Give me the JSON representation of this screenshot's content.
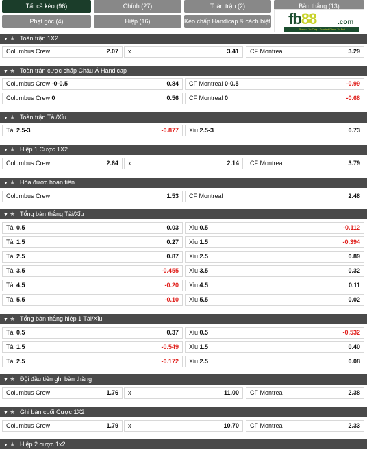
{
  "tabs": {
    "all": "Tất cả kèo (96)",
    "main": "Chính (27)",
    "full_match": "Toàn trận (2)",
    "goals": "Bàn thắng (13)",
    "corners": "Phạt góc (4)",
    "half": "Hiệp (16)",
    "handicap": "Kèo chấp Handicap & cách biệt (2)"
  },
  "logo": {
    "brand_a": "fb",
    "brand_b": "88",
    "domain": ".com",
    "tagline": "Games To Play · Trusted Place To Bet"
  },
  "colors": {
    "header_bg": "#4a4a4a",
    "active_tab": "#1b3d2a",
    "tab_bg": "#888888",
    "negative": "#e0201c"
  },
  "sections": [
    {
      "title": "Toàn trận 1X2",
      "rows": [
        [
          {
            "label": "Columbus Crew",
            "line": "",
            "value": "2.07"
          },
          {
            "label": "x",
            "line": "",
            "value": "3.41"
          },
          {
            "label": "CF Montreal",
            "line": "",
            "value": "3.29"
          }
        ]
      ]
    },
    {
      "title": "Toàn trận cược chấp Châu Á Handicap",
      "rows": [
        [
          {
            "label": "Columbus Crew",
            "line": "-0-0.5",
            "value": "0.84"
          },
          {
            "label": "CF Montreal",
            "line": "0-0.5",
            "value": "-0.99"
          }
        ],
        [
          {
            "label": "Columbus Crew",
            "line": "0",
            "value": "0.56"
          },
          {
            "label": "CF Montreal",
            "line": "0",
            "value": "-0.68"
          }
        ]
      ]
    },
    {
      "title": "Toàn trận Tài/Xỉu",
      "rows": [
        [
          {
            "label": "Tài",
            "line": "2.5-3",
            "value": "-0.877"
          },
          {
            "label": "Xỉu",
            "line": "2.5-3",
            "value": "0.73"
          }
        ]
      ]
    },
    {
      "title": "Hiệp 1 Cược 1X2",
      "rows": [
        [
          {
            "label": "Columbus Crew",
            "line": "",
            "value": "2.64"
          },
          {
            "label": "x",
            "line": "",
            "value": "2.14"
          },
          {
            "label": "CF Montreal",
            "line": "",
            "value": "3.79"
          }
        ]
      ]
    },
    {
      "title": "Hòa được hoàn tiền",
      "rows": [
        [
          {
            "label": "Columbus Crew",
            "line": "",
            "value": "1.53"
          },
          {
            "label": "CF Montreal",
            "line": "",
            "value": "2.48"
          }
        ]
      ]
    },
    {
      "title": "Tổng bàn thắng Tài/Xỉu",
      "rows": [
        [
          {
            "label": "Tài",
            "line": "0.5",
            "value": "0.03"
          },
          {
            "label": "Xỉu",
            "line": "0.5",
            "value": "-0.112"
          }
        ],
        [
          {
            "label": "Tài",
            "line": "1.5",
            "value": "0.27"
          },
          {
            "label": "Xỉu",
            "line": "1.5",
            "value": "-0.394"
          }
        ],
        [
          {
            "label": "Tài",
            "line": "2.5",
            "value": "0.87"
          },
          {
            "label": "Xỉu",
            "line": "2.5",
            "value": "0.89"
          }
        ],
        [
          {
            "label": "Tài",
            "line": "3.5",
            "value": "-0.455"
          },
          {
            "label": "Xỉu",
            "line": "3.5",
            "value": "0.32"
          }
        ],
        [
          {
            "label": "Tài",
            "line": "4.5",
            "value": "-0.20"
          },
          {
            "label": "Xỉu",
            "line": "4.5",
            "value": "0.11"
          }
        ],
        [
          {
            "label": "Tài",
            "line": "5.5",
            "value": "-0.10"
          },
          {
            "label": "Xỉu",
            "line": "5.5",
            "value": "0.02"
          }
        ]
      ]
    },
    {
      "title": "Tổng bàn thắng hiệp 1 Tài/Xỉu",
      "rows": [
        [
          {
            "label": "Tài",
            "line": "0.5",
            "value": "0.37"
          },
          {
            "label": "Xỉu",
            "line": "0.5",
            "value": "-0.532"
          }
        ],
        [
          {
            "label": "Tài",
            "line": "1.5",
            "value": "-0.549"
          },
          {
            "label": "Xỉu",
            "line": "1.5",
            "value": "0.40"
          }
        ],
        [
          {
            "label": "Tài",
            "line": "2.5",
            "value": "-0.172"
          },
          {
            "label": "Xỉu",
            "line": "2.5",
            "value": "0.08"
          }
        ]
      ]
    },
    {
      "title": "Đội đầu tiên ghi bàn thắng",
      "rows": [
        [
          {
            "label": "Columbus Crew",
            "line": "",
            "value": "1.76"
          },
          {
            "label": "x",
            "line": "",
            "value": "11.00"
          },
          {
            "label": "CF Montreal",
            "line": "",
            "value": "2.38"
          }
        ]
      ]
    },
    {
      "title": "Ghi bàn cuối Cược 1X2",
      "rows": [
        [
          {
            "label": "Columbus Crew",
            "line": "",
            "value": "1.79"
          },
          {
            "label": "x",
            "line": "",
            "value": "10.70"
          },
          {
            "label": "CF Montreal",
            "line": "",
            "value": "2.33"
          }
        ]
      ]
    },
    {
      "title": "Hiệp 2 cược 1x2",
      "rows": []
    }
  ]
}
